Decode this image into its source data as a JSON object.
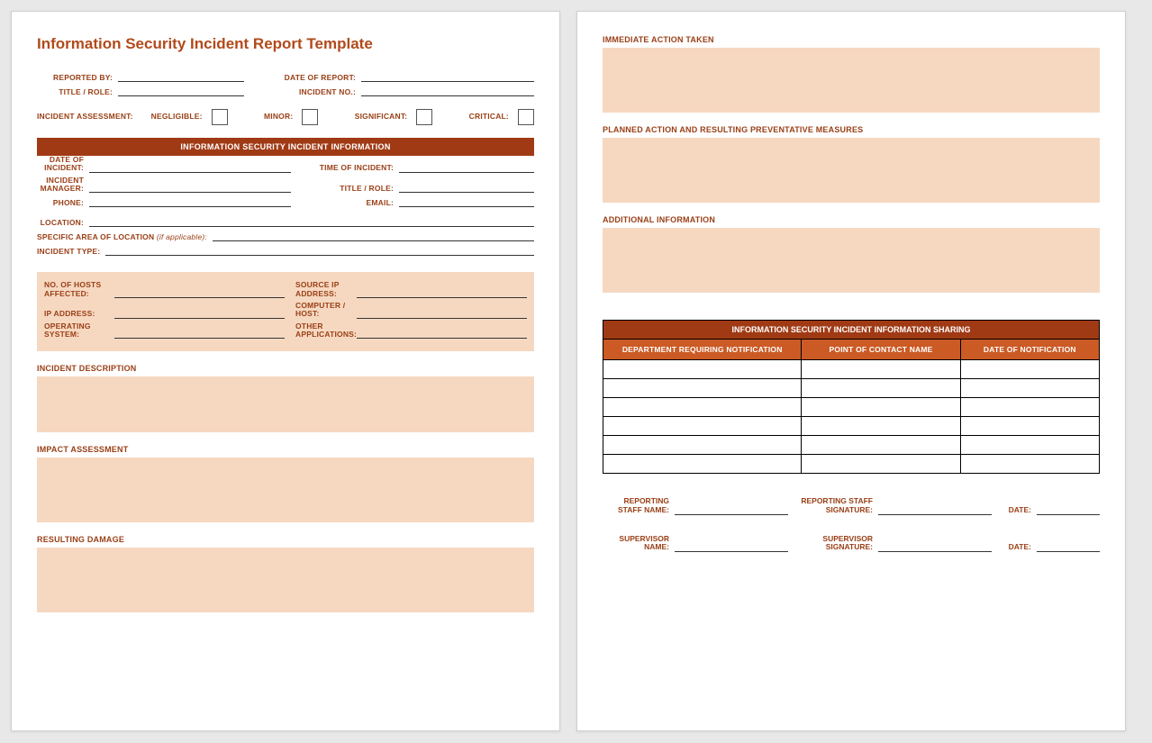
{
  "colors": {
    "title": "#b24a1a",
    "label": "#9a3f16",
    "sectionBar": "#a03a14",
    "tableHeader": "#cb5a24",
    "peach": "#f6d8c1",
    "pageBg": "#ffffff",
    "bodyBg": "#e8e8e8",
    "border": "#333333"
  },
  "title": "Information Security Incident Report Template",
  "header": {
    "reportedBy": "REPORTED BY:",
    "dateOfReport": "DATE OF REPORT:",
    "titleRole": "TITLE / ROLE:",
    "incidentNo": "INCIDENT NO.:"
  },
  "assessment": {
    "label": "INCIDENT ASSESSMENT:",
    "options": [
      "NEGLIGIBLE:",
      "MINOR:",
      "SIGNIFICANT:",
      "CRITICAL:"
    ]
  },
  "sectionBar1": "INFORMATION SECURITY INCIDENT INFORMATION",
  "incidentInfo": {
    "dateOfIncident": "DATE OF\nINCIDENT:",
    "timeOfIncident": "TIME OF INCIDENT:",
    "incidentManager": "INCIDENT\nMANAGER:",
    "titleRole": "TITLE / ROLE:",
    "phone": "PHONE:",
    "email": "EMAIL:",
    "location": "LOCATION:",
    "specificArea": "SPECIFIC AREA OF LOCATION",
    "specificAreaSuffix": " (if applicable):",
    "incidentType": "INCIDENT TYPE:"
  },
  "hostBox": {
    "noHosts": "NO. OF HOSTS\nAFFECTED:",
    "sourceIp": "SOURCE IP\nADDRESS:",
    "ipAddress": "IP ADDRESS:",
    "computerHost": "COMPUTER /\nHOST:",
    "os": "OPERATING\nSYSTEM:",
    "otherApps": "OTHER\nAPPLICATIONS:"
  },
  "page1Sections": {
    "incidentDescription": "INCIDENT DESCRIPTION",
    "impactAssessment": "IMPACT ASSESSMENT",
    "resultingDamage": "RESULTING DAMAGE"
  },
  "page2Sections": {
    "immediateAction": "IMMEDIATE ACTION TAKEN",
    "plannedAction": "PLANNED ACTION AND RESULTING PREVENTATIVE MEASURES",
    "additionalInfo": "ADDITIONAL INFORMATION"
  },
  "sharing": {
    "header": "INFORMATION SECURITY INCIDENT INFORMATION SHARING",
    "columns": [
      "DEPARTMENT REQUIRING NOTIFICATION",
      "POINT OF CONTACT NAME",
      "DATE OF NOTIFICATION"
    ],
    "rowCount": 6
  },
  "signatures": {
    "reportingStaffName": "REPORTING\nSTAFF NAME:",
    "reportingStaffSig": "REPORTING STAFF\nSIGNATURE:",
    "supervisorName": "SUPERVISOR\nNAME:",
    "supervisorSig": "SUPERVISOR\nSIGNATURE:",
    "date": "DATE:"
  }
}
